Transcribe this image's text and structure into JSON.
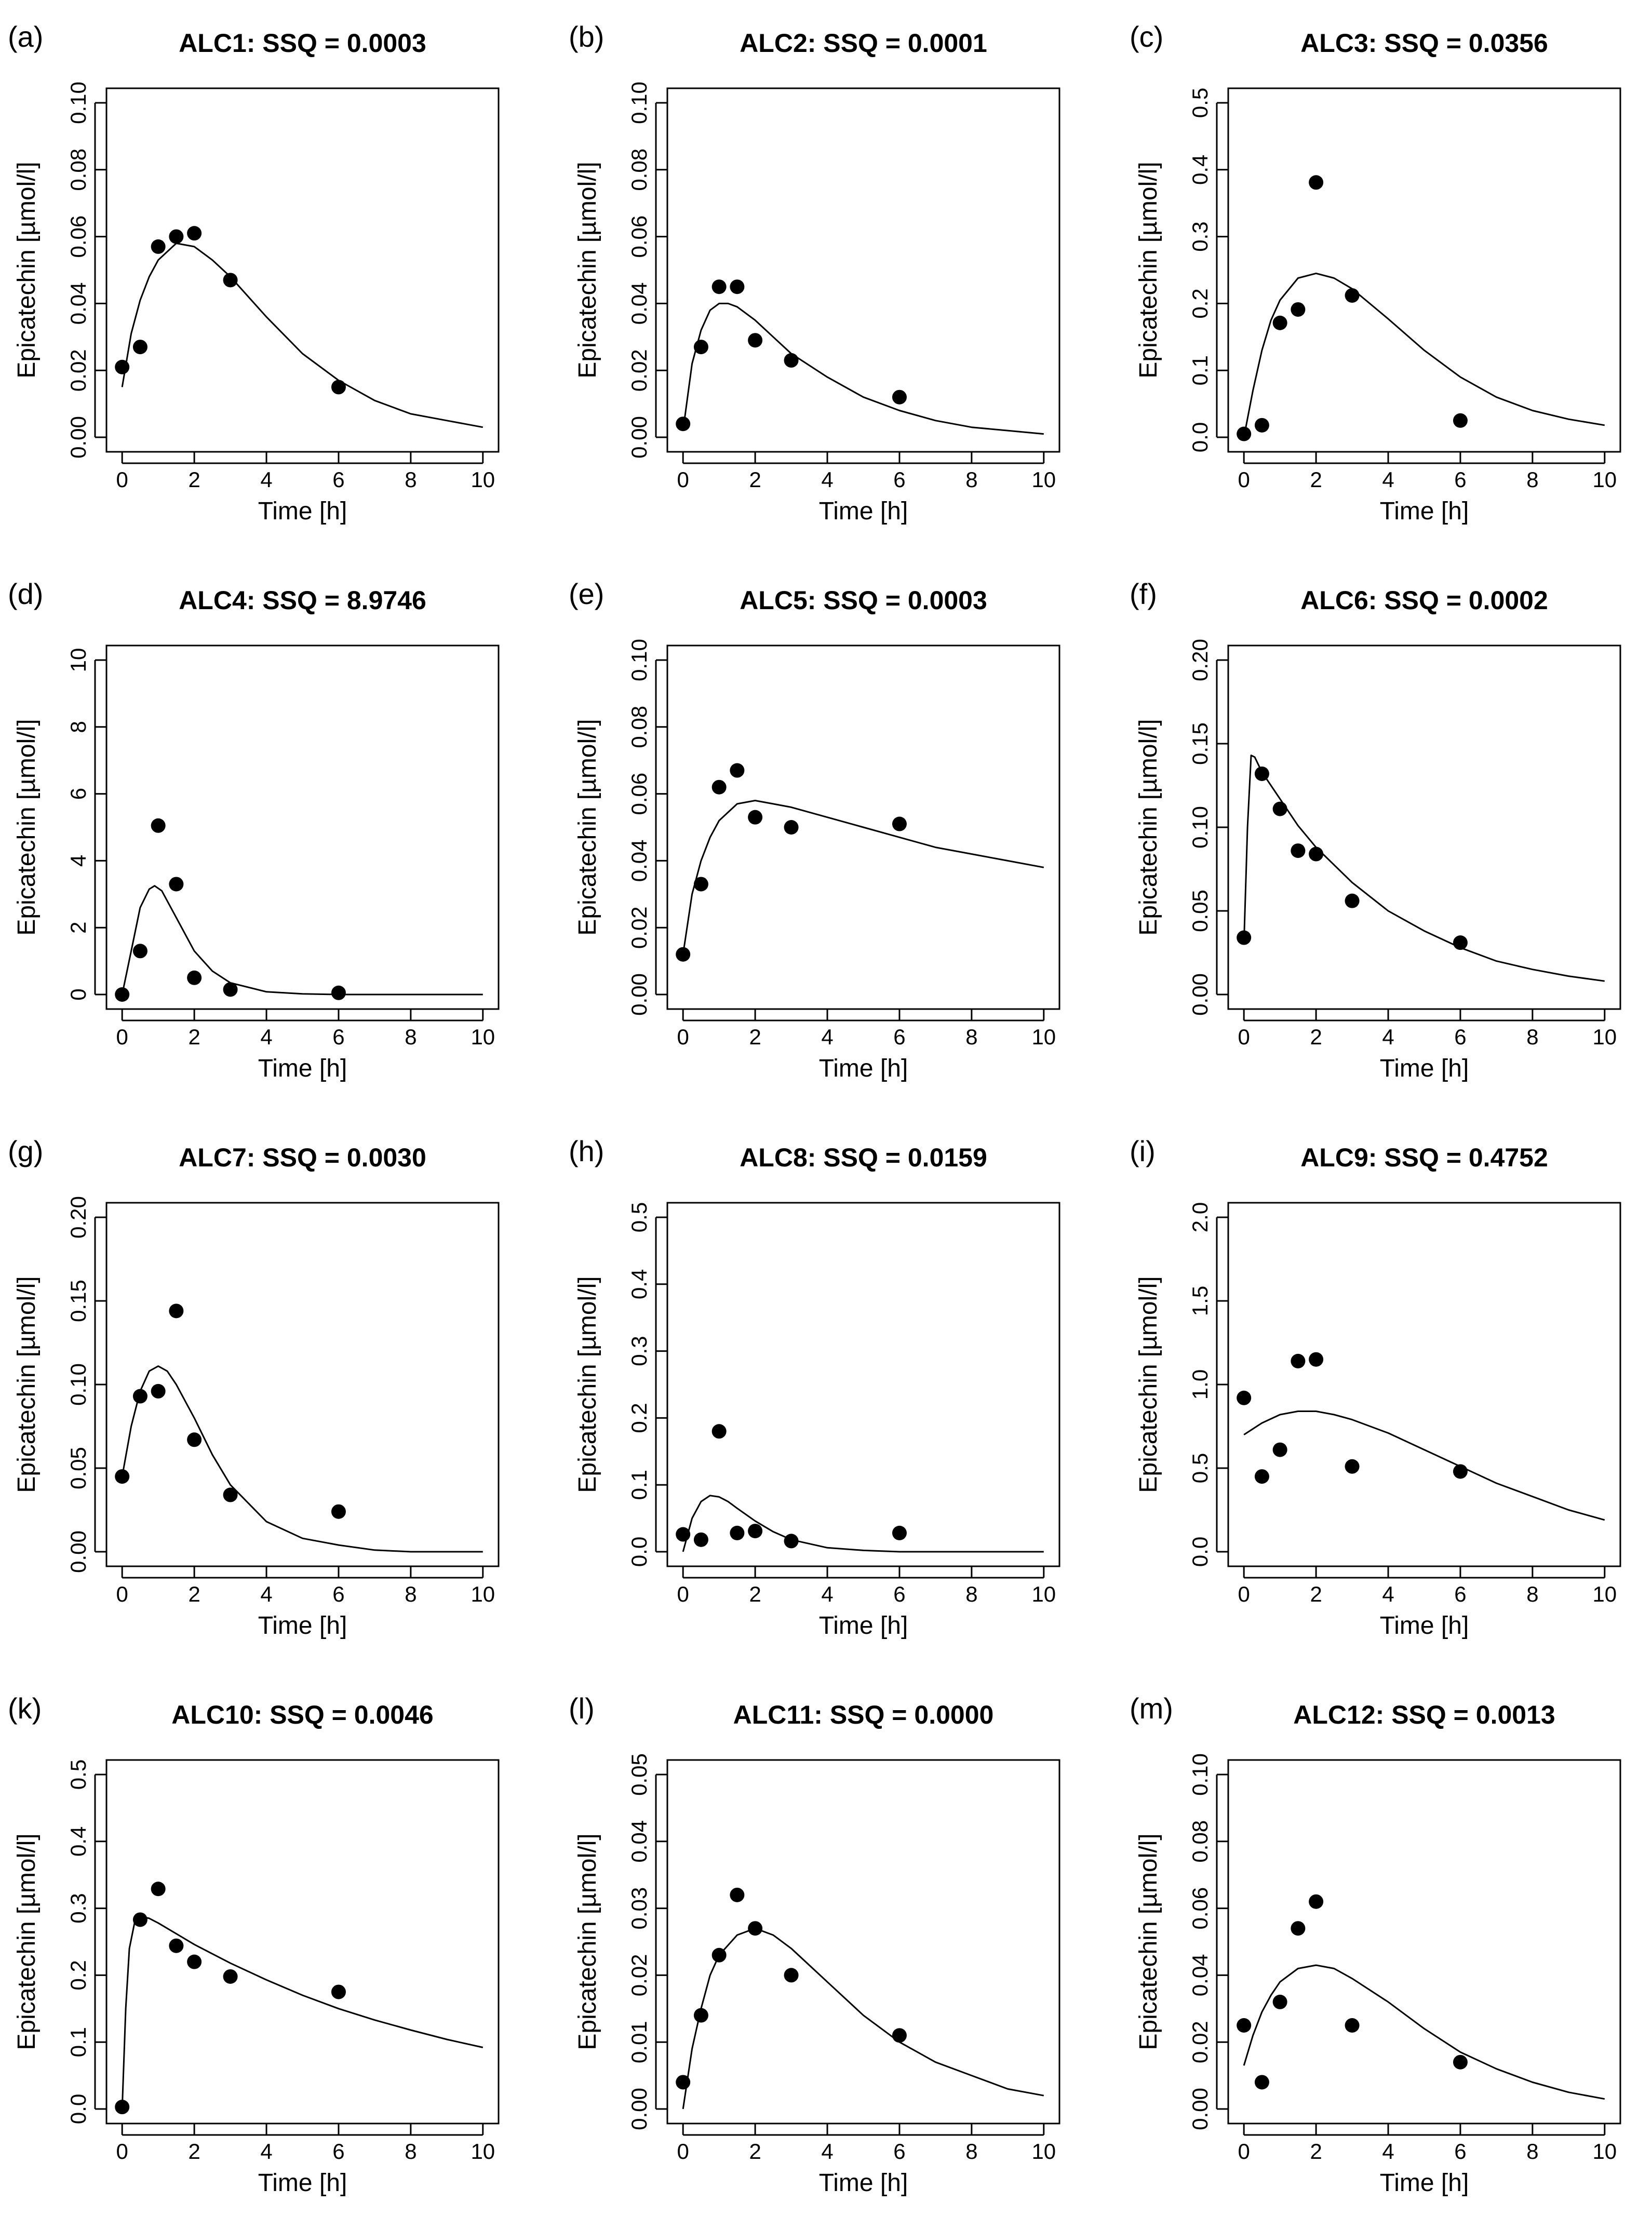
{
  "chart_data": [
    {
      "tag": "(a)",
      "type": "scatter",
      "title": "ALC1: SSQ =  0.0003",
      "xlabel": "Time [h]",
      "ylabel": "Epicatechin [µmol/l]",
      "xlim": [
        0,
        10
      ],
      "ylim": [
        0,
        0.1
      ],
      "xticks": [
        0,
        2,
        4,
        6,
        8,
        10
      ],
      "yticks": [
        0,
        0.02,
        0.04,
        0.06,
        0.08,
        0.1
      ],
      "ytick_labels": [
        "0.00",
        "0.02",
        "0.04",
        "0.06",
        "0.08",
        "0.10"
      ],
      "points": {
        "x": [
          0,
          0.5,
          1,
          1.5,
          2,
          3,
          6
        ],
        "y": [
          0.021,
          0.027,
          0.057,
          0.06,
          0.061,
          0.047,
          0.015
        ]
      },
      "fit": {
        "x": [
          0,
          0.25,
          0.5,
          0.75,
          1,
          1.5,
          2,
          2.5,
          3,
          4,
          5,
          6,
          7,
          8,
          9,
          10
        ],
        "y": [
          0.015,
          0.031,
          0.041,
          0.048,
          0.053,
          0.058,
          0.057,
          0.053,
          0.048,
          0.036,
          0.025,
          0.017,
          0.011,
          0.007,
          0.005,
          0.003
        ]
      }
    },
    {
      "tag": "(b)",
      "type": "scatter",
      "title": "ALC2: SSQ =  0.0001",
      "xlabel": "Time [h]",
      "ylabel": "Epicatechin [µmol/l]",
      "xlim": [
        0,
        10
      ],
      "ylim": [
        0,
        0.1
      ],
      "xticks": [
        0,
        2,
        4,
        6,
        8,
        10
      ],
      "yticks": [
        0,
        0.02,
        0.04,
        0.06,
        0.08,
        0.1
      ],
      "ytick_labels": [
        "0.00",
        "0.02",
        "0.04",
        "0.06",
        "0.08",
        "0.10"
      ],
      "points": {
        "x": [
          0,
          0.5,
          1,
          1.5,
          2,
          3,
          6
        ],
        "y": [
          0.004,
          0.027,
          0.045,
          0.045,
          0.029,
          0.023,
          0.012
        ]
      },
      "fit": {
        "x": [
          0,
          0.25,
          0.5,
          0.75,
          1,
          1.25,
          1.5,
          2,
          2.5,
          3,
          4,
          5,
          6,
          7,
          8,
          9,
          10
        ],
        "y": [
          0.002,
          0.022,
          0.032,
          0.038,
          0.04,
          0.04,
          0.039,
          0.035,
          0.03,
          0.025,
          0.018,
          0.012,
          0.008,
          0.005,
          0.003,
          0.002,
          0.001
        ]
      }
    },
    {
      "tag": "(c)",
      "type": "scatter",
      "title": "ALC3: SSQ =  0.0356",
      "xlabel": "Time [h]",
      "ylabel": "Epicatechin [µmol/l]",
      "xlim": [
        0,
        10
      ],
      "ylim": [
        0,
        0.5
      ],
      "xticks": [
        0,
        2,
        4,
        6,
        8,
        10
      ],
      "yticks": [
        0,
        0.1,
        0.2,
        0.3,
        0.4,
        0.5
      ],
      "ytick_labels": [
        "0.0",
        "0.1",
        "0.2",
        "0.3",
        "0.4",
        "0.5"
      ],
      "points": {
        "x": [
          0,
          0.5,
          1,
          1.5,
          2,
          3,
          6
        ],
        "y": [
          0.005,
          0.018,
          0.171,
          0.191,
          0.381,
          0.212,
          0.025
        ]
      },
      "fit": {
        "x": [
          0,
          0.25,
          0.5,
          0.75,
          1,
          1.5,
          2,
          2.5,
          3,
          4,
          5,
          6,
          7,
          8,
          9,
          10
        ],
        "y": [
          0.0,
          0.07,
          0.13,
          0.175,
          0.205,
          0.238,
          0.245,
          0.238,
          0.222,
          0.177,
          0.13,
          0.09,
          0.06,
          0.04,
          0.027,
          0.018
        ]
      }
    },
    {
      "tag": "(d)",
      "type": "scatter",
      "title": "ALC4: SSQ =  8.9746",
      "xlabel": "Time [h]",
      "ylabel": "Epicatechin [µmol/l]",
      "xlim": [
        0,
        10
      ],
      "ylim": [
        0,
        10
      ],
      "xticks": [
        0,
        2,
        4,
        6,
        8,
        10
      ],
      "yticks": [
        0,
        2,
        4,
        6,
        8,
        10
      ],
      "ytick_labels": [
        "0",
        "2",
        "4",
        "6",
        "8",
        "10"
      ],
      "points": {
        "x": [
          0,
          0.5,
          1,
          1.5,
          2,
          3,
          6
        ],
        "y": [
          0.0,
          1.3,
          5.05,
          3.3,
          0.5,
          0.15,
          0.05
        ]
      },
      "fit": {
        "x": [
          0,
          0.25,
          0.5,
          0.75,
          0.9,
          1.1,
          1.5,
          2,
          2.5,
          3,
          4,
          5,
          6,
          8,
          10
        ],
        "y": [
          0.0,
          1.3,
          2.6,
          3.15,
          3.25,
          3.1,
          2.3,
          1.3,
          0.7,
          0.35,
          0.08,
          0.02,
          0.0,
          0.0,
          0.0
        ]
      }
    },
    {
      "tag": "(e)",
      "type": "scatter",
      "title": "ALC5: SSQ =  0.0003",
      "xlabel": "Time [h]",
      "ylabel": "Epicatechin [µmol/l]",
      "xlim": [
        0,
        10
      ],
      "ylim": [
        0,
        0.1
      ],
      "xticks": [
        0,
        2,
        4,
        6,
        8,
        10
      ],
      "yticks": [
        0,
        0.02,
        0.04,
        0.06,
        0.08,
        0.1
      ],
      "ytick_labels": [
        "0.00",
        "0.02",
        "0.04",
        "0.06",
        "0.08",
        "0.10"
      ],
      "points": {
        "x": [
          0,
          0.5,
          1,
          1.5,
          2,
          3,
          6
        ],
        "y": [
          0.012,
          0.033,
          0.062,
          0.067,
          0.053,
          0.05,
          0.051
        ]
      },
      "fit": {
        "x": [
          0,
          0.25,
          0.5,
          0.75,
          1,
          1.5,
          2,
          2.5,
          3,
          4,
          5,
          6,
          7,
          8,
          9,
          10
        ],
        "y": [
          0.012,
          0.03,
          0.04,
          0.047,
          0.052,
          0.057,
          0.058,
          0.057,
          0.056,
          0.053,
          0.05,
          0.047,
          0.044,
          0.042,
          0.04,
          0.038
        ]
      }
    },
    {
      "tag": "(f)",
      "type": "scatter",
      "title": "ALC6: SSQ =  0.0002",
      "xlabel": "Time [h]",
      "ylabel": "Epicatechin [µmol/l]",
      "xlim": [
        0,
        10
      ],
      "ylim": [
        0,
        0.2
      ],
      "xticks": [
        0,
        2,
        4,
        6,
        8,
        10
      ],
      "yticks": [
        0,
        0.05,
        0.1,
        0.15,
        0.2
      ],
      "ytick_labels": [
        "0.00",
        "0.05",
        "0.10",
        "0.15",
        "0.20"
      ],
      "points": {
        "x": [
          0,
          0.5,
          1,
          1.5,
          2,
          3,
          6
        ],
        "y": [
          0.034,
          0.132,
          0.111,
          0.086,
          0.084,
          0.056,
          0.031
        ]
      },
      "fit": {
        "x": [
          0,
          0.1,
          0.2,
          0.3,
          0.5,
          1,
          1.5,
          2,
          3,
          4,
          5,
          6,
          7,
          8,
          9,
          10
        ],
        "y": [
          0.03,
          0.1,
          0.143,
          0.142,
          0.133,
          0.117,
          0.101,
          0.088,
          0.067,
          0.05,
          0.038,
          0.028,
          0.02,
          0.015,
          0.011,
          0.008
        ]
      }
    },
    {
      "tag": "(g)",
      "type": "scatter",
      "title": "ALC7: SSQ =  0.0030",
      "xlabel": "Time [h]",
      "ylabel": "Epicatechin [µmol/l]",
      "xlim": [
        0,
        10
      ],
      "ylim": [
        0,
        0.2
      ],
      "xticks": [
        0,
        2,
        4,
        6,
        8,
        10
      ],
      "yticks": [
        0,
        0.05,
        0.1,
        0.15,
        0.2
      ],
      "ytick_labels": [
        "0.00",
        "0.05",
        "0.10",
        "0.15",
        "0.20"
      ],
      "points": {
        "x": [
          0,
          0.5,
          1,
          1.5,
          2,
          3,
          6
        ],
        "y": [
          0.045,
          0.093,
          0.096,
          0.144,
          0.067,
          0.034,
          0.024
        ]
      },
      "fit": {
        "x": [
          0,
          0.25,
          0.5,
          0.75,
          1,
          1.25,
          1.5,
          2,
          2.5,
          3,
          4,
          5,
          6,
          7,
          8,
          10
        ],
        "y": [
          0.045,
          0.075,
          0.096,
          0.108,
          0.111,
          0.108,
          0.1,
          0.08,
          0.058,
          0.04,
          0.018,
          0.008,
          0.004,
          0.001,
          0.0,
          0.0
        ]
      }
    },
    {
      "tag": "(h)",
      "type": "scatter",
      "title": "ALC8: SSQ =  0.0159",
      "xlabel": "Time [h]",
      "ylabel": "Epicatechin [µmol/l]",
      "xlim": [
        0,
        10
      ],
      "ylim": [
        0,
        0.5
      ],
      "xticks": [
        0,
        2,
        4,
        6,
        8,
        10
      ],
      "yticks": [
        0,
        0.1,
        0.2,
        0.3,
        0.4,
        0.5
      ],
      "ytick_labels": [
        "0.0",
        "0.1",
        "0.2",
        "0.3",
        "0.4",
        "0.5"
      ],
      "points": {
        "x": [
          0,
          0.5,
          1,
          1.5,
          2,
          3,
          6
        ],
        "y": [
          0.026,
          0.018,
          0.18,
          0.028,
          0.031,
          0.016,
          0.028
        ]
      },
      "fit": {
        "x": [
          0,
          0.25,
          0.5,
          0.75,
          1,
          1.25,
          1.5,
          2,
          2.5,
          3,
          4,
          5,
          6,
          8,
          10
        ],
        "y": [
          0.0,
          0.05,
          0.075,
          0.084,
          0.082,
          0.075,
          0.065,
          0.046,
          0.03,
          0.018,
          0.006,
          0.002,
          0.0,
          0.0,
          0.0
        ]
      }
    },
    {
      "tag": "(i)",
      "type": "scatter",
      "title": "ALC9: SSQ =  0.4752",
      "xlabel": "Time [h]",
      "ylabel": "Epicatechin [µmol/l]",
      "xlim": [
        0,
        10
      ],
      "ylim": [
        0,
        2
      ],
      "xticks": [
        0,
        2,
        4,
        6,
        8,
        10
      ],
      "yticks": [
        0,
        0.5,
        1,
        1.5,
        2
      ],
      "ytick_labels": [
        "0.0",
        "0.5",
        "1.0",
        "1.5",
        "2.0"
      ],
      "points": {
        "x": [
          0,
          0.5,
          1,
          1.5,
          2,
          3,
          6
        ],
        "y": [
          0.92,
          0.45,
          0.61,
          1.14,
          1.15,
          0.51,
          0.48
        ]
      },
      "fit": {
        "x": [
          0,
          0.5,
          1,
          1.5,
          2,
          2.5,
          3,
          4,
          5,
          6,
          7,
          8,
          9,
          10
        ],
        "y": [
          0.7,
          0.77,
          0.82,
          0.84,
          0.84,
          0.82,
          0.79,
          0.71,
          0.61,
          0.51,
          0.41,
          0.33,
          0.25,
          0.19
        ]
      }
    },
    {
      "tag": "(k)",
      "type": "scatter",
      "title": "ALC10: SSQ =  0.0046",
      "xlabel": "Time [h]",
      "ylabel": "Epicatechin [µmol/l]",
      "xlim": [
        0,
        10
      ],
      "ylim": [
        0,
        0.5
      ],
      "xticks": [
        0,
        2,
        4,
        6,
        8,
        10
      ],
      "yticks": [
        0,
        0.1,
        0.2,
        0.3,
        0.4,
        0.5
      ],
      "ytick_labels": [
        "0.0",
        "0.1",
        "0.2",
        "0.3",
        "0.4",
        "0.5"
      ],
      "points": {
        "x": [
          0,
          0.5,
          1,
          1.5,
          2,
          3,
          6
        ],
        "y": [
          0.003,
          0.283,
          0.329,
          0.244,
          0.22,
          0.198,
          0.175
        ]
      },
      "fit": {
        "x": [
          0,
          0.1,
          0.2,
          0.35,
          0.5,
          0.75,
          1,
          1.5,
          2,
          3,
          4,
          5,
          6,
          7,
          8,
          9,
          10
        ],
        "y": [
          0.0,
          0.15,
          0.24,
          0.28,
          0.288,
          0.285,
          0.278,
          0.262,
          0.246,
          0.218,
          0.193,
          0.17,
          0.15,
          0.133,
          0.118,
          0.104,
          0.092
        ]
      }
    },
    {
      "tag": "(l)",
      "type": "scatter",
      "title": "ALC11: SSQ =  0.0000",
      "xlabel": "Time [h]",
      "ylabel": "Epicatechin [µmol/l]",
      "xlim": [
        0,
        10
      ],
      "ylim": [
        0,
        0.05
      ],
      "xticks": [
        0,
        2,
        4,
        6,
        8,
        10
      ],
      "yticks": [
        0,
        0.01,
        0.02,
        0.03,
        0.04,
        0.05
      ],
      "ytick_labels": [
        "0.00",
        "0.01",
        "0.02",
        "0.03",
        "0.04",
        "0.05"
      ],
      "points": {
        "x": [
          0,
          0.5,
          1,
          1.5,
          2,
          3,
          6
        ],
        "y": [
          0.004,
          0.014,
          0.023,
          0.032,
          0.027,
          0.02,
          0.011
        ]
      },
      "fit": {
        "x": [
          0,
          0.25,
          0.5,
          0.75,
          1,
          1.5,
          2,
          2.5,
          3,
          4,
          5,
          6,
          7,
          8,
          9,
          10
        ],
        "y": [
          0.0,
          0.009,
          0.015,
          0.02,
          0.023,
          0.026,
          0.027,
          0.026,
          0.024,
          0.019,
          0.014,
          0.01,
          0.007,
          0.005,
          0.003,
          0.002
        ]
      }
    },
    {
      "tag": "(m)",
      "type": "scatter",
      "title": "ALC12: SSQ =  0.0013",
      "xlabel": "Time [h]",
      "ylabel": "Epicatechin [µmol/l]",
      "xlim": [
        0,
        10
      ],
      "ylim": [
        0,
        0.1
      ],
      "xticks": [
        0,
        2,
        4,
        6,
        8,
        10
      ],
      "yticks": [
        0,
        0.02,
        0.04,
        0.06,
        0.08,
        0.1
      ],
      "ytick_labels": [
        "0.00",
        "0.02",
        "0.04",
        "0.06",
        "0.08",
        "0.10"
      ],
      "points": {
        "x": [
          0,
          0.5,
          1,
          1.5,
          2,
          3,
          6
        ],
        "y": [
          0.025,
          0.008,
          0.032,
          0.054,
          0.062,
          0.025,
          0.014
        ]
      },
      "fit": {
        "x": [
          0,
          0.25,
          0.5,
          0.75,
          1,
          1.5,
          2,
          2.5,
          3,
          4,
          5,
          6,
          7,
          8,
          9,
          10
        ],
        "y": [
          0.013,
          0.022,
          0.029,
          0.034,
          0.038,
          0.042,
          0.043,
          0.042,
          0.039,
          0.032,
          0.024,
          0.017,
          0.012,
          0.008,
          0.005,
          0.003
        ]
      }
    }
  ]
}
